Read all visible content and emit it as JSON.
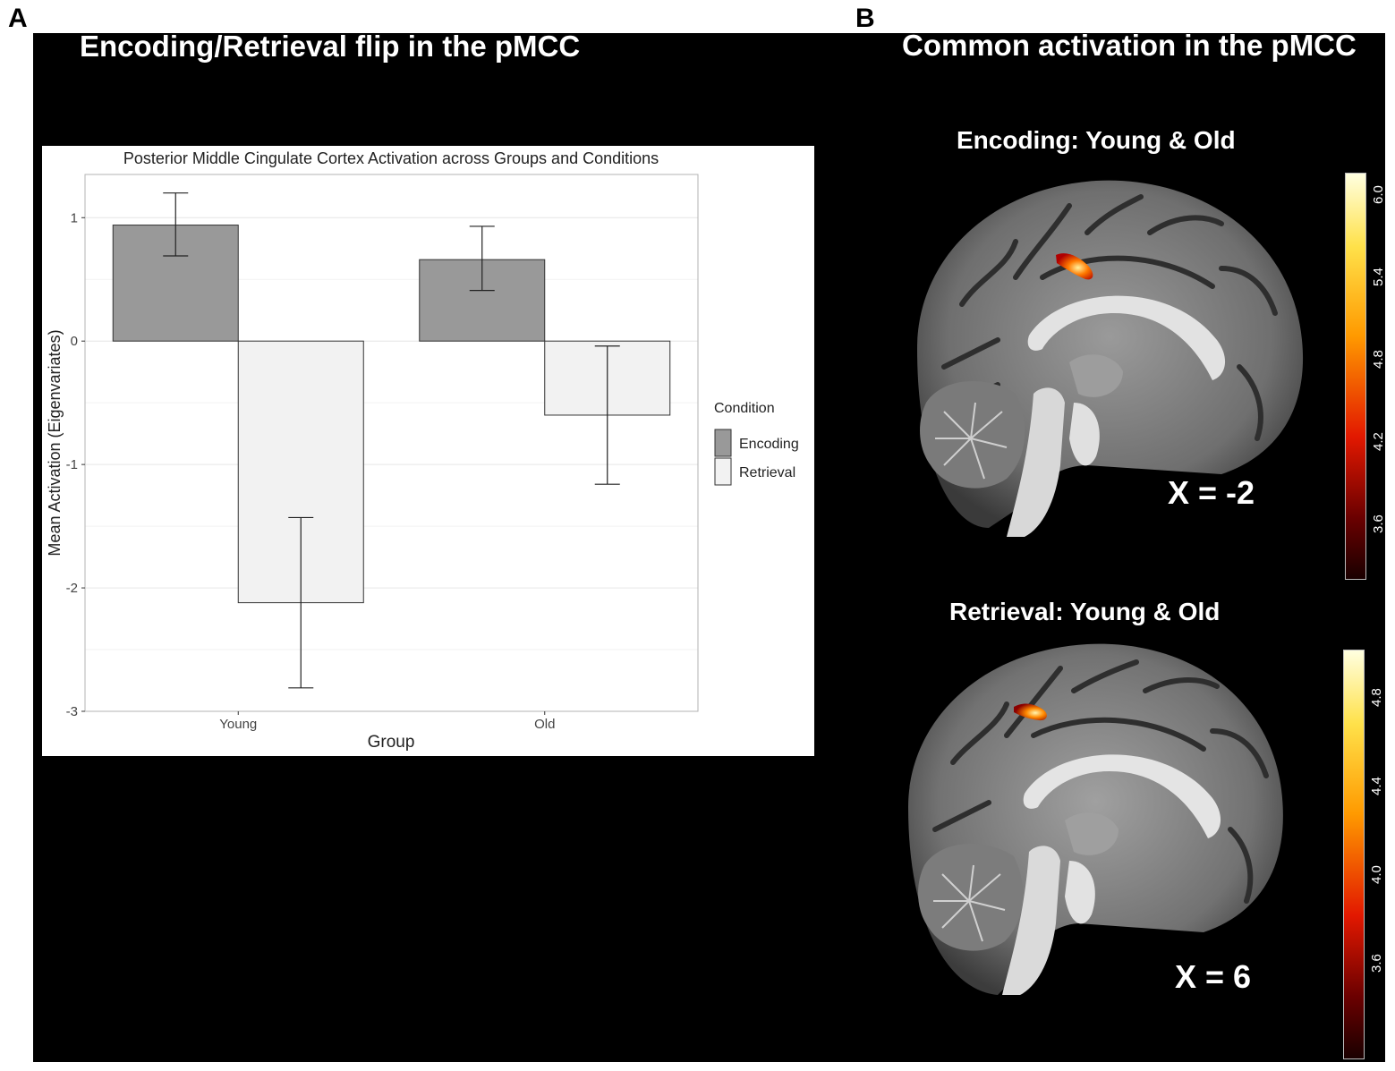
{
  "panel_a": {
    "letter": "A",
    "heading": "Encoding/Retrieval flip in the pMCC"
  },
  "panel_b": {
    "letter": "B",
    "heading": "Common activation in the pMCC",
    "slices": [
      {
        "title": "Encoding: Young & Old",
        "coordinate": "X = -2",
        "colorbar_ticks": [
          "6.0",
          "5.4",
          "4.8",
          "4.2",
          "3.6"
        ]
      },
      {
        "title": "Retrieval: Young & Old",
        "coordinate": "X = 6",
        "colorbar_ticks": [
          "4.8",
          "4.4",
          "4.0",
          "3.6"
        ]
      }
    ]
  },
  "colors": {
    "background": "#000000",
    "encoding_fill": "#999999",
    "retrieval_fill": "#f2f2f2",
    "heat_low": "#3a0000",
    "heat_mid": "#e01400",
    "heat_high": "#ffffd8"
  },
  "chart_data": {
    "type": "bar",
    "title": "Posterior Middle Cingulate Cortex Activation across Groups and Conditions",
    "xlabel": "Group",
    "ylabel": "Mean Activation (Eigenvariates)",
    "categories": [
      "Young",
      "Old"
    ],
    "ylim": [
      -3,
      1.35
    ],
    "yticks": [
      1,
      0,
      -1,
      -2,
      -3
    ],
    "ytick_labels": [
      "1",
      "0",
      "-1",
      "-2",
      "-3"
    ],
    "grid": true,
    "legend_title": "Condition",
    "legend_position": "right",
    "series": [
      {
        "name": "Encoding",
        "values": [
          0.94,
          0.66
        ],
        "err_low": [
          0.69,
          0.41
        ],
        "err_high": [
          1.2,
          0.93
        ]
      },
      {
        "name": "Retrieval",
        "values": [
          -2.12,
          -0.6
        ],
        "err_low": [
          -2.81,
          -1.16
        ],
        "err_high": [
          -1.43,
          -0.04
        ]
      }
    ]
  }
}
